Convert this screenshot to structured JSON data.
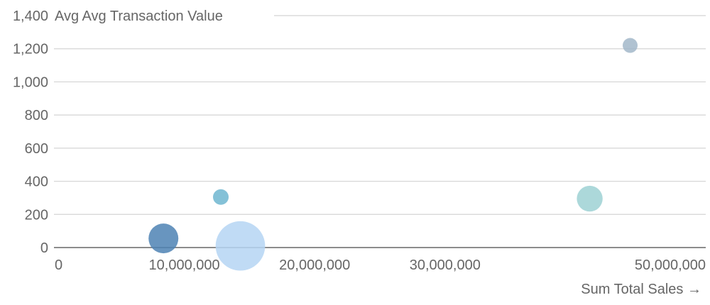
{
  "chart_data": {
    "type": "scatter",
    "xlabel": "Sum Total Sales →",
    "ylabel": "Avg Avg Transaction Value",
    "xlim": [
      0,
      50000000
    ],
    "ylim": [
      0,
      1400
    ],
    "x_ticks": [
      0,
      10000000,
      20000000,
      30000000,
      50000000
    ],
    "x_tick_labels": [
      "0",
      "10,000,000",
      "20,000,000",
      "30,000,000",
      "50,000,000"
    ],
    "y_ticks": [
      0,
      200,
      400,
      600,
      800,
      1000,
      1200,
      1400
    ],
    "y_tick_labels": [
      "0",
      "200",
      "400",
      "600",
      "800",
      "1,000",
      "1,200",
      "1,400"
    ],
    "grid": true,
    "points": [
      {
        "x": 8400000,
        "y": 55,
        "size": 4,
        "color": "#4e82b4"
      },
      {
        "x": 12800000,
        "y": 305,
        "size": 1.1,
        "color": "#6fb6d0"
      },
      {
        "x": 14300000,
        "y": 10,
        "size": 11,
        "color": "#b5d5f3"
      },
      {
        "x": 41100000,
        "y": 295,
        "size": 3,
        "color": "#9ed1d3"
      },
      {
        "x": 44200000,
        "y": 1220,
        "size": 1,
        "color": "#a2b7c9"
      }
    ]
  }
}
